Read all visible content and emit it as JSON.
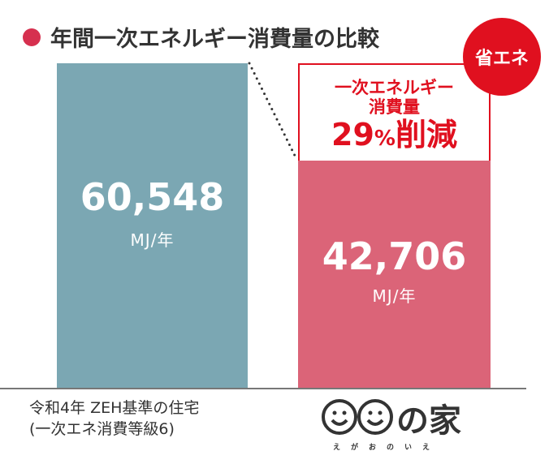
{
  "title": "年間一次エネルギー消費量の比較",
  "chart_data": {
    "type": "bar",
    "categories": [
      "令和4年 ZEH基準の住宅\n(一次エネ消費等級6)",
      "えがおのいえ"
    ],
    "values": [
      60548,
      42706
    ],
    "value_labels": [
      "60,548",
      "42,706"
    ],
    "unit": "MJ/年",
    "colors": [
      "#7ba7b3",
      "#db6478"
    ],
    "ylim": [
      0,
      60548
    ],
    "grid": false
  },
  "category_label": {
    "line1": "令和4年 ZEH基準の住宅",
    "line2": "(一次エネ消費等級6)"
  },
  "callout": {
    "line1": "一次エネルギー",
    "line2": "消費量",
    "percent": "29",
    "percent_sign": "%",
    "suffix": "削減"
  },
  "badge": "省エネ",
  "logo": {
    "mark": "の家",
    "reading": "えがおのいえ"
  }
}
